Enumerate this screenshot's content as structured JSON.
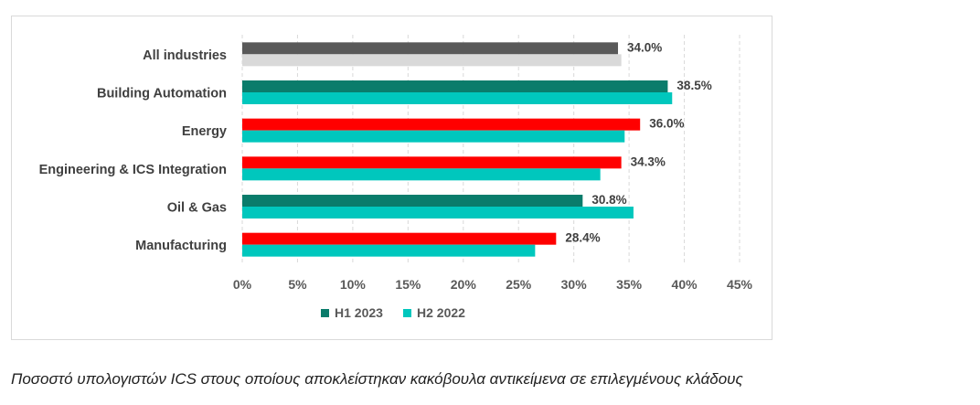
{
  "chart_data": {
    "type": "bar",
    "orientation": "horizontal",
    "categories": [
      "All industries",
      "Building Automation",
      "Energy",
      "Engineering & ICS Integration ",
      "Oil & Gas",
      "Manufacturing"
    ],
    "series": [
      {
        "name": "H1 2023",
        "values": [
          34.0,
          38.5,
          36.0,
          34.3,
          30.8,
          28.4
        ],
        "value_labels": [
          "34.0%",
          "38.5%",
          "36.0%",
          "34.3%",
          "30.8%",
          "28.4%"
        ]
      },
      {
        "name": "H2 2022",
        "values": [
          34.3,
          38.9,
          34.6,
          32.4,
          35.4,
          26.5
        ]
      }
    ],
    "bar_colors": {
      "H1 2023": [
        "#595959",
        "#0a7c6b",
        "#ff0000",
        "#ff0000",
        "#0a7c6b",
        "#ff0000"
      ],
      "H2 2022": [
        "#d9d9d9",
        "#00c7bd",
        "#00c7bd",
        "#00c7bd",
        "#00c7bd",
        "#00c7bd"
      ]
    },
    "legend_colors": {
      "H1 2023": "#0a7c6b",
      "H2 2022": "#00c7bd"
    },
    "xlim": [
      0,
      45
    ],
    "x_ticks": [
      0,
      5,
      10,
      15,
      20,
      25,
      30,
      35,
      40,
      45
    ],
    "x_tick_labels": [
      "0%",
      "5%",
      "10%",
      "15%",
      "20%",
      "25%",
      "30%",
      "35%",
      "40%",
      "45%"
    ],
    "grid": "vertical dashed",
    "legend_position": "bottom-left"
  },
  "caption": "Ποσοστό υπολογιστών ICS στους οποίους αποκλείστηκαν κακόβουλα αντικείμενα σε επιλεγμένους κλάδους"
}
